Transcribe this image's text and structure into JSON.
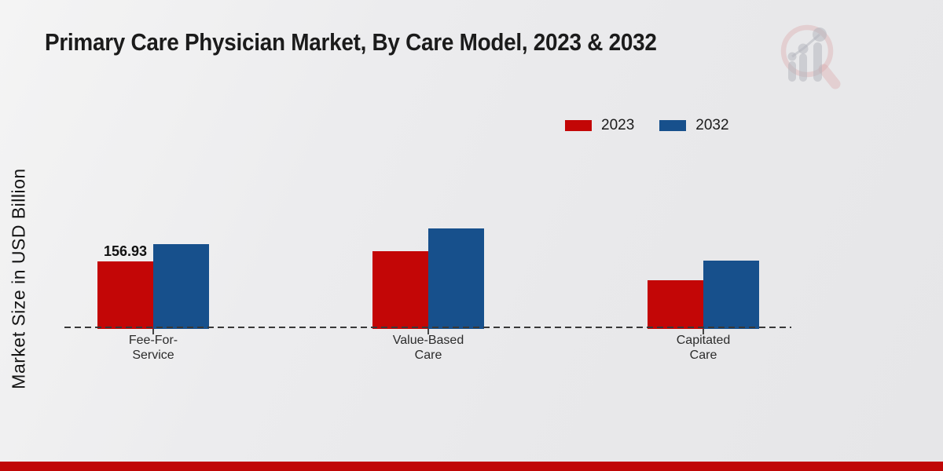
{
  "header": {
    "title": "Primary Care Physician Market, By Care Model, 2023 & 2032"
  },
  "y_axis": {
    "label": "Market Size in USD Billion",
    "tick_labels_visible": false
  },
  "legend": {
    "position": "top-right",
    "items": [
      {
        "label": "2023",
        "color": "#c30606"
      },
      {
        "label": "2032",
        "color": "#17508c"
      }
    ]
  },
  "watermark": {
    "icon": "magnifier-bar-chart-logo",
    "ring_color": "#d9a6a9",
    "bars_color": "#b4b6be"
  },
  "footer": {
    "band_color": "#c00707"
  },
  "chart_data": {
    "type": "bar",
    "title": "Primary Care Physician Market, By Care Model, 2023 & 2032",
    "xlabel": "",
    "ylabel": "Market Size in USD Billion",
    "categories": [
      "Fee-For-\nService",
      "Value-Based\nCare",
      "Capitated\nCare"
    ],
    "series": [
      {
        "name": "2023",
        "color": "#c30606",
        "values": [
          156.93,
          181,
          113
        ],
        "data_labels": [
          "156.93",
          null,
          null
        ]
      },
      {
        "name": "2032",
        "color": "#17508c",
        "values": [
          197,
          234,
          159
        ],
        "data_labels": [
          null,
          null,
          null
        ]
      }
    ],
    "ylim": [
      0,
      260
    ],
    "grid": false,
    "baseline_style": "dashed",
    "legend_position": "top-right"
  }
}
